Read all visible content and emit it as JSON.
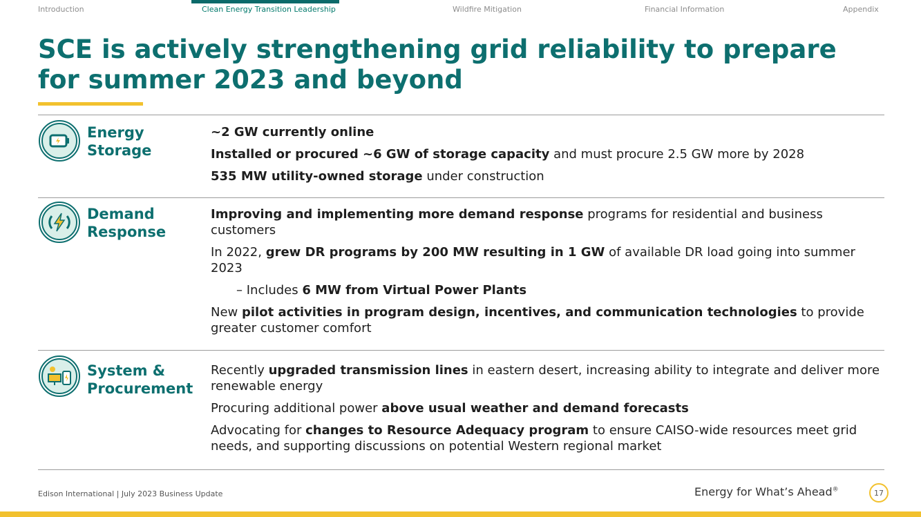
{
  "nav": {
    "tabs": [
      {
        "label": "Introduction"
      },
      {
        "label": "Clean Energy Transition Leadership"
      },
      {
        "label": "Wildfire Mitigation"
      },
      {
        "label": "Financial Information"
      },
      {
        "label": "Appendix"
      }
    ]
  },
  "title": "SCE is actively strengthening grid reliability to prepare for summer 2023 and beyond",
  "sections": [
    {
      "label_line1": "Energy",
      "label_line2": "Storage",
      "icon": "battery-icon",
      "bullets": [
        {
          "bold": "~2 GW currently online",
          "rest": ""
        },
        {
          "bold": "Installed or procured ~6 GW of storage capacity",
          "rest": " and must procure 2.5 GW more by 2028"
        },
        {
          "bold": "535 MW utility-owned storage",
          "rest": " under construction"
        }
      ]
    },
    {
      "label_line1": "Demand",
      "label_line2": "Response",
      "icon": "lightning-cycle-icon",
      "b1_bold": "Improving and implementing more demand response",
      "b1_rest": " programs for residential and business customers",
      "b2_pre": "In 2022, ",
      "b2_bold": "grew DR programs by 200 MW resulting in 1 GW",
      "b2_rest": " of available DR load going into summer 2023",
      "b3_pre": "– Includes ",
      "b3_bold": "6 MW from Virtual Power Plants",
      "b4_pre": "New ",
      "b4_bold": "pilot activities in program design, incentives, and communication technologies",
      "b4_rest": " to provide greater customer comfort"
    },
    {
      "label_line1": "System &",
      "label_line2": "Procurement",
      "icon": "solar-grid-icon",
      "b1_pre": "Recently ",
      "b1_bold": "upgraded transmission lines",
      "b1_rest": " in eastern desert, increasing  ability to integrate and deliver more renewable energy",
      "b2_pre": "Procuring additional power ",
      "b2_bold": "above usual weather and demand forecasts",
      "b3_pre": "Advocating for ",
      "b3_bold": "changes to Resource Adequacy program",
      "b3_rest": " to ensure CAISO-wide resources meet grid needs, and supporting discussions on potential Western regional market"
    }
  ],
  "footer": {
    "left": "Edison International | July 2023 Business Update",
    "tagline": "Energy for What’s Ahead",
    "tagline_mark": "®",
    "page": "17"
  },
  "colors": {
    "teal": "#0d6f6f",
    "yellow": "#f2c12e",
    "nav_active": "#00796b"
  }
}
